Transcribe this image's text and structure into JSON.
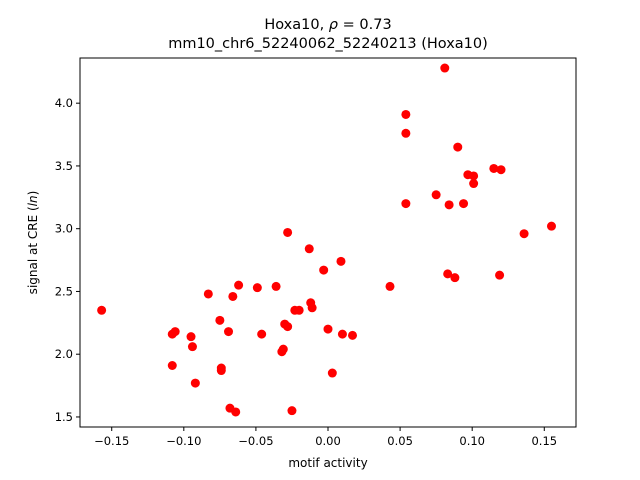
{
  "chart_data": {
    "type": "scatter",
    "title_line1_prefix": "Hoxa10, ",
    "title_rho_symbol": "ρ",
    "title_rho_suffix": " = 0.73",
    "title_line2": "mm10_chr6_52240062_52240213 (Hoxa10)",
    "xlabel": "motif activity",
    "ylabel_prefix": "signal at CRE (",
    "ylabel_italic": "ln",
    "ylabel_suffix": ")",
    "xlim": [
      -0.172,
      0.172
    ],
    "ylim": [
      1.42,
      4.36
    ],
    "xticks": [
      {
        "value": -0.15,
        "label": "−0.15"
      },
      {
        "value": -0.1,
        "label": "−0.10"
      },
      {
        "value": -0.05,
        "label": "−0.05"
      },
      {
        "value": 0.0,
        "label": "0.00"
      },
      {
        "value": 0.05,
        "label": "0.05"
      },
      {
        "value": 0.1,
        "label": "0.10"
      },
      {
        "value": 0.15,
        "label": "0.15"
      }
    ],
    "yticks": [
      {
        "value": 1.5,
        "label": "1.5"
      },
      {
        "value": 2.0,
        "label": "2.0"
      },
      {
        "value": 2.5,
        "label": "2.5"
      },
      {
        "value": 3.0,
        "label": "3.0"
      },
      {
        "value": 3.5,
        "label": "3.5"
      },
      {
        "value": 4.0,
        "label": "4.0"
      }
    ],
    "marker_color": "#ff0000",
    "points": [
      {
        "x": -0.157,
        "y": 2.35
      },
      {
        "x": -0.108,
        "y": 2.16
      },
      {
        "x": -0.106,
        "y": 2.18
      },
      {
        "x": -0.108,
        "y": 1.91
      },
      {
        "x": -0.095,
        "y": 2.14
      },
      {
        "x": -0.094,
        "y": 2.06
      },
      {
        "x": -0.092,
        "y": 1.77
      },
      {
        "x": -0.083,
        "y": 2.48
      },
      {
        "x": -0.075,
        "y": 2.27
      },
      {
        "x": -0.074,
        "y": 1.87
      },
      {
        "x": -0.074,
        "y": 1.89
      },
      {
        "x": -0.069,
        "y": 2.18
      },
      {
        "x": -0.068,
        "y": 1.57
      },
      {
        "x": -0.066,
        "y": 2.46
      },
      {
        "x": -0.064,
        "y": 1.54
      },
      {
        "x": -0.062,
        "y": 2.55
      },
      {
        "x": -0.049,
        "y": 2.53
      },
      {
        "x": -0.046,
        "y": 2.16
      },
      {
        "x": -0.036,
        "y": 2.54
      },
      {
        "x": -0.032,
        "y": 2.02
      },
      {
        "x": -0.031,
        "y": 2.04
      },
      {
        "x": -0.03,
        "y": 2.24
      },
      {
        "x": -0.028,
        "y": 2.22
      },
      {
        "x": -0.028,
        "y": 2.97
      },
      {
        "x": -0.025,
        "y": 1.55
      },
      {
        "x": -0.023,
        "y": 2.35
      },
      {
        "x": -0.02,
        "y": 2.35
      },
      {
        "x": -0.013,
        "y": 2.84
      },
      {
        "x": -0.012,
        "y": 2.41
      },
      {
        "x": -0.011,
        "y": 2.37
      },
      {
        "x": -0.003,
        "y": 2.67
      },
      {
        "x": 0.0,
        "y": 2.2
      },
      {
        "x": 0.003,
        "y": 1.85
      },
      {
        "x": 0.009,
        "y": 2.74
      },
      {
        "x": 0.01,
        "y": 2.16
      },
      {
        "x": 0.017,
        "y": 2.15
      },
      {
        "x": 0.043,
        "y": 2.54
      },
      {
        "x": 0.054,
        "y": 3.91
      },
      {
        "x": 0.054,
        "y": 3.76
      },
      {
        "x": 0.054,
        "y": 3.2
      },
      {
        "x": 0.075,
        "y": 3.27
      },
      {
        "x": 0.081,
        "y": 4.28
      },
      {
        "x": 0.083,
        "y": 2.64
      },
      {
        "x": 0.084,
        "y": 3.19
      },
      {
        "x": 0.088,
        "y": 2.61
      },
      {
        "x": 0.09,
        "y": 3.65
      },
      {
        "x": 0.094,
        "y": 3.2
      },
      {
        "x": 0.097,
        "y": 3.43
      },
      {
        "x": 0.101,
        "y": 3.42
      },
      {
        "x": 0.101,
        "y": 3.36
      },
      {
        "x": 0.115,
        "y": 3.48
      },
      {
        "x": 0.119,
        "y": 2.63
      },
      {
        "x": 0.12,
        "y": 3.47
      },
      {
        "x": 0.136,
        "y": 2.96
      },
      {
        "x": 0.155,
        "y": 3.02
      }
    ]
  }
}
